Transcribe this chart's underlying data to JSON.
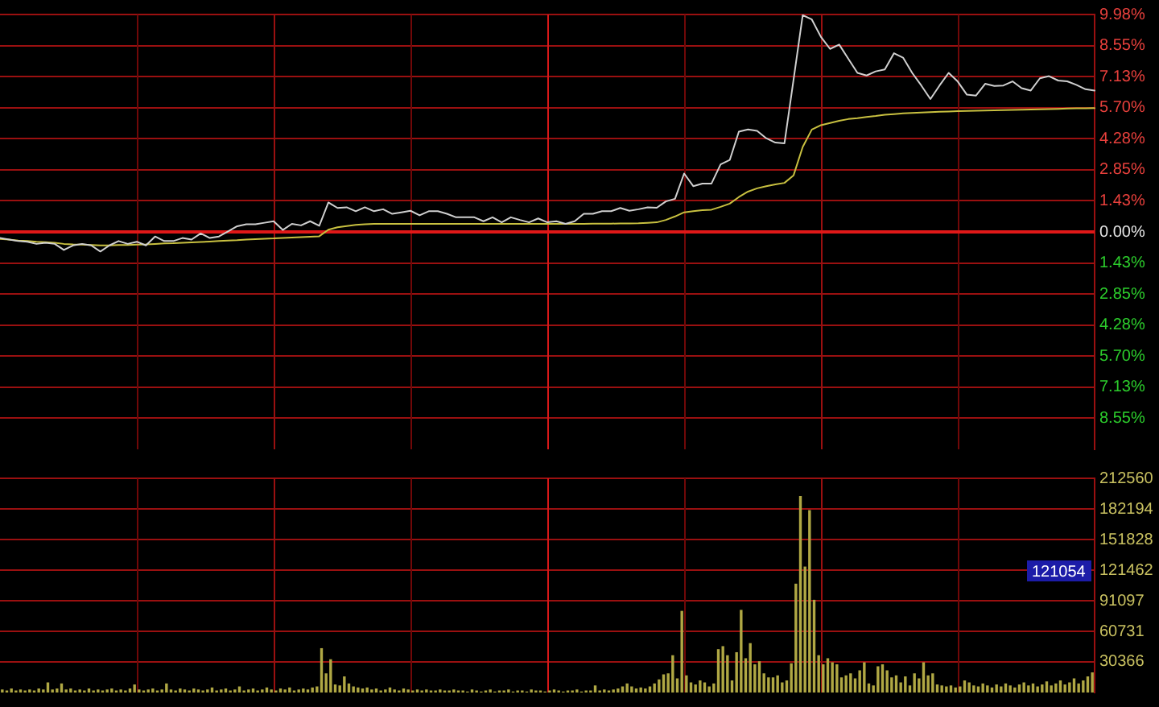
{
  "chart_data": [
    {
      "type": "line",
      "categories": [
        null,
        null,
        null,
        null,
        null,
        null,
        null,
        null,
        null,
        null,
        null,
        null,
        null,
        null,
        null,
        null,
        null,
        null,
        null,
        null,
        null,
        null,
        null,
        null,
        null,
        null,
        null,
        null,
        null,
        null,
        null,
        null,
        null,
        null,
        null,
        null,
        null,
        null,
        null,
        null,
        null,
        null,
        null,
        null,
        null,
        null,
        null,
        null,
        null,
        null,
        null,
        null,
        null,
        null,
        null,
        null,
        null,
        null,
        null,
        null,
        null,
        null,
        null,
        null,
        null,
        null,
        null,
        null,
        null,
        null,
        null,
        null,
        null,
        null,
        null,
        null,
        null,
        null,
        null,
        null,
        null,
        null,
        null,
        null,
        null,
        null,
        null,
        null,
        null,
        null,
        null,
        null,
        null,
        null,
        null,
        null,
        null,
        null,
        null,
        null,
        null,
        null,
        null,
        null,
        null,
        null,
        null,
        null,
        null,
        null,
        null,
        null,
        null,
        null,
        null,
        null,
        null,
        null,
        null,
        null,
        null
      ],
      "series": [
        {
          "color": "#d0d0d0",
          "values": [
            -0.28,
            -0.35,
            -0.42,
            -0.45,
            -0.55,
            -0.5,
            -0.55,
            -0.83,
            -0.62,
            -0.55,
            -0.62,
            -0.9,
            -0.62,
            -0.42,
            -0.55,
            -0.45,
            -0.62,
            -0.21,
            -0.42,
            -0.42,
            -0.28,
            -0.35,
            -0.07,
            -0.28,
            -0.21,
            0.02,
            0.26,
            0.35,
            0.35,
            0.42,
            0.49,
            0.09,
            0.37,
            0.3,
            0.49,
            0.28,
            1.35,
            1.1,
            1.13,
            0.95,
            1.13,
            0.95,
            1.04,
            0.83,
            0.9,
            0.97,
            0.76,
            0.95,
            0.95,
            0.83,
            0.67,
            0.67,
            0.67,
            0.49,
            0.67,
            0.44,
            0.67,
            0.55,
            0.44,
            0.62,
            0.44,
            0.49,
            0.37,
            0.49,
            0.83,
            0.83,
            0.95,
            0.95,
            1.1,
            0.97,
            1.04,
            1.13,
            1.11,
            1.4,
            1.52,
            2.68,
            2.1,
            2.22,
            2.22,
            3.1,
            3.3,
            4.6,
            4.7,
            4.64,
            4.3,
            4.1,
            4.07,
            7.0,
            9.95,
            9.75,
            8.95,
            8.4,
            8.6,
            7.95,
            7.3,
            7.18,
            7.37,
            7.46,
            8.2,
            8.0,
            7.3,
            6.72,
            6.1,
            6.72,
            7.3,
            6.9,
            6.3,
            6.26,
            6.8,
            6.7,
            6.72,
            6.91,
            6.6,
            6.49,
            7.05,
            7.15,
            6.95,
            6.91,
            6.75,
            6.55,
            6.49
          ]
        },
        {
          "color": "#c8c040",
          "values": [
            -0.32,
            -0.35,
            -0.4,
            -0.42,
            -0.45,
            -0.47,
            -0.5,
            -0.55,
            -0.57,
            -0.58,
            -0.6,
            -0.62,
            -0.62,
            -0.6,
            -0.6,
            -0.58,
            -0.57,
            -0.55,
            -0.53,
            -0.52,
            -0.5,
            -0.48,
            -0.46,
            -0.44,
            -0.42,
            -0.4,
            -0.38,
            -0.35,
            -0.33,
            -0.31,
            -0.3,
            -0.28,
            -0.26,
            -0.24,
            -0.22,
            -0.2,
            0.1,
            0.21,
            0.27,
            0.32,
            0.35,
            0.37,
            0.37,
            0.37,
            0.37,
            0.37,
            0.37,
            0.37,
            0.37,
            0.37,
            0.37,
            0.37,
            0.37,
            0.37,
            0.37,
            0.37,
            0.37,
            0.37,
            0.37,
            0.37,
            0.37,
            0.37,
            0.37,
            0.37,
            0.37,
            0.38,
            0.38,
            0.38,
            0.39,
            0.39,
            0.4,
            0.42,
            0.44,
            0.55,
            0.71,
            0.9,
            0.95,
            1.0,
            1.02,
            1.15,
            1.3,
            1.6,
            1.85,
            2.0,
            2.1,
            2.18,
            2.25,
            2.6,
            3.9,
            4.7,
            4.9,
            5.0,
            5.1,
            5.18,
            5.22,
            5.28,
            5.32,
            5.38,
            5.41,
            5.44,
            5.46,
            5.48,
            5.5,
            5.52,
            5.53,
            5.54,
            5.55,
            5.56,
            5.57,
            5.58,
            5.59,
            5.6,
            5.61,
            5.62,
            5.63,
            5.64,
            5.65,
            5.66,
            5.67,
            5.67,
            5.68
          ]
        }
      ],
      "ylim": [
        -9.98,
        9.98
      ],
      "yticks": [
        {
          "value": 9.98,
          "label": "9.98%"
        },
        {
          "value": 8.55,
          "label": "8.55%"
        },
        {
          "value": 7.13,
          "label": "7.13%"
        },
        {
          "value": 5.7,
          "label": "5.70%"
        },
        {
          "value": 4.28,
          "label": "4.28%"
        },
        {
          "value": 2.85,
          "label": "2.85%"
        },
        {
          "value": 1.43,
          "label": "1.43%"
        },
        {
          "value": 0,
          "label": "0.00%"
        },
        {
          "value": -1.43,
          "label": "1.43%"
        },
        {
          "value": -2.85,
          "label": "2.85%"
        },
        {
          "value": -4.28,
          "label": "4.28%"
        },
        {
          "value": -5.7,
          "label": "5.70%"
        },
        {
          "value": -7.13,
          "label": "7.13%"
        },
        {
          "value": -8.55,
          "label": "8.55%"
        }
      ],
      "ref_lines": [
        {
          "axis": "y",
          "value": 0,
          "color": "#e01818"
        }
      ],
      "grid": true,
      "tick_labels": "y",
      "marker": "none"
    },
    {
      "type": "bar",
      "categories": [
        null,
        null,
        null,
        null,
        null,
        null,
        null,
        null,
        null,
        null,
        null,
        null,
        null,
        null,
        null,
        null,
        null,
        null,
        null,
        null,
        null,
        null,
        null,
        null,
        null,
        null,
        null,
        null,
        null,
        null,
        null,
        null,
        null,
        null,
        null,
        null,
        null,
        null,
        null,
        null,
        null,
        null,
        null,
        null,
        null,
        null,
        null,
        null,
        null,
        null,
        null,
        null,
        null,
        null,
        null,
        null,
        null,
        null,
        null,
        null,
        null,
        null,
        null,
        null,
        null,
        null,
        null,
        null,
        null,
        null,
        null,
        null,
        null,
        null,
        null,
        null,
        null,
        null,
        null,
        null,
        null,
        null,
        null,
        null,
        null,
        null,
        null,
        null,
        null,
        null,
        null,
        null,
        null,
        null,
        null,
        null,
        null,
        null,
        null,
        null,
        null,
        null,
        null,
        null,
        null,
        null,
        null,
        null,
        null,
        null,
        null,
        null,
        null,
        null,
        null,
        null,
        null,
        null,
        null,
        null,
        null,
        null,
        null,
        null,
        null,
        null,
        null,
        null,
        null,
        null,
        null,
        null,
        null,
        null,
        null,
        null,
        null,
        null,
        null,
        null,
        null,
        null,
        null,
        null,
        null,
        null,
        null,
        null,
        null,
        null,
        null,
        null,
        null,
        null,
        null,
        null,
        null,
        null,
        null,
        null,
        null,
        null,
        null,
        null,
        null,
        null,
        null,
        null,
        null,
        null,
        null,
        null,
        null,
        null,
        null,
        null,
        null,
        null,
        null,
        null,
        null,
        null,
        null,
        null,
        null,
        null,
        null,
        null,
        null,
        null,
        null,
        null,
        null,
        null,
        null,
        null,
        null,
        null,
        null,
        null,
        null,
        null,
        null,
        null,
        null,
        null,
        null,
        null,
        null,
        null,
        null,
        null,
        null,
        null,
        null,
        null,
        null,
        null,
        null,
        null,
        null,
        null,
        null,
        null,
        null,
        null,
        null,
        null,
        null,
        null,
        null,
        null,
        null,
        null,
        null,
        null,
        null,
        null,
        null,
        null
      ],
      "values": [
        3000,
        2000,
        4000,
        2000,
        3000,
        2000,
        3000,
        2000,
        4000,
        3000,
        10000,
        3000,
        4000,
        9000,
        3000,
        4000,
        2000,
        3000,
        2000,
        4000,
        2000,
        3000,
        2000,
        3000,
        4000,
        2000,
        3000,
        2000,
        4000,
        8000,
        3000,
        2000,
        3000,
        4000,
        2000,
        3000,
        9000,
        3000,
        2000,
        4000,
        3000,
        2000,
        4000,
        3000,
        2000,
        3000,
        5000,
        2000,
        3000,
        4000,
        2000,
        3000,
        6000,
        2000,
        3000,
        4000,
        2000,
        3000,
        5000,
        3000,
        2000,
        4000,
        3000,
        5000,
        2000,
        3000,
        4000,
        3000,
        5000,
        6000,
        44000,
        19000,
        33000,
        8000,
        7000,
        16000,
        9000,
        6000,
        5000,
        4000,
        5000,
        3000,
        4000,
        2000,
        3000,
        5000,
        3000,
        2000,
        4000,
        3000,
        2000,
        3000,
        2000,
        3000,
        2000,
        2000,
        3000,
        2000,
        2000,
        3000,
        2000,
        2000,
        1000,
        3000,
        2000,
        1000,
        2000,
        3000,
        1000,
        2000,
        2000,
        3000,
        1000,
        2000,
        2000,
        1000,
        3000,
        2000,
        2000,
        1000,
        2000,
        3000,
        2000,
        1000,
        2000,
        2000,
        3000,
        1000,
        2000,
        2000,
        7000,
        2000,
        3000,
        2000,
        3000,
        4000,
        6000,
        9000,
        6000,
        4000,
        5000,
        4000,
        6000,
        9000,
        13000,
        18000,
        19000,
        37000,
        14000,
        81000,
        17000,
        10000,
        8000,
        12000,
        10000,
        6000,
        9000,
        43000,
        46000,
        37000,
        12000,
        40000,
        82000,
        34000,
        49000,
        28000,
        31000,
        19000,
        15000,
        15000,
        17000,
        10000,
        12000,
        29000,
        108000,
        195000,
        125000,
        181000,
        92000,
        37000,
        28000,
        34000,
        30000,
        28000,
        15000,
        17000,
        19000,
        14000,
        22000,
        30000,
        9000,
        7000,
        26000,
        28000,
        22000,
        15000,
        17000,
        10000,
        16000,
        7000,
        19000,
        14000,
        30000,
        17000,
        19000,
        8000,
        7000,
        6000,
        7000,
        5000,
        6000,
        12000,
        10000,
        7000,
        6000,
        9000,
        7000,
        5000,
        8000,
        6000,
        9000,
        7000,
        5000,
        8000,
        10000,
        7000,
        9000,
        6000,
        8000,
        11000,
        7000,
        9000,
        12000,
        8000,
        10000,
        14000,
        9000,
        12000,
        16000,
        20000
      ],
      "color": "#b0a844",
      "ylim": [
        0,
        212560
      ],
      "yticks": [
        30366,
        60731,
        91097,
        121462,
        151828,
        182194,
        212560
      ],
      "grid": true,
      "tick_labels": "y",
      "annotations": [
        {
          "text": "121054",
          "y": 121054
        }
      ]
    }
  ]
}
